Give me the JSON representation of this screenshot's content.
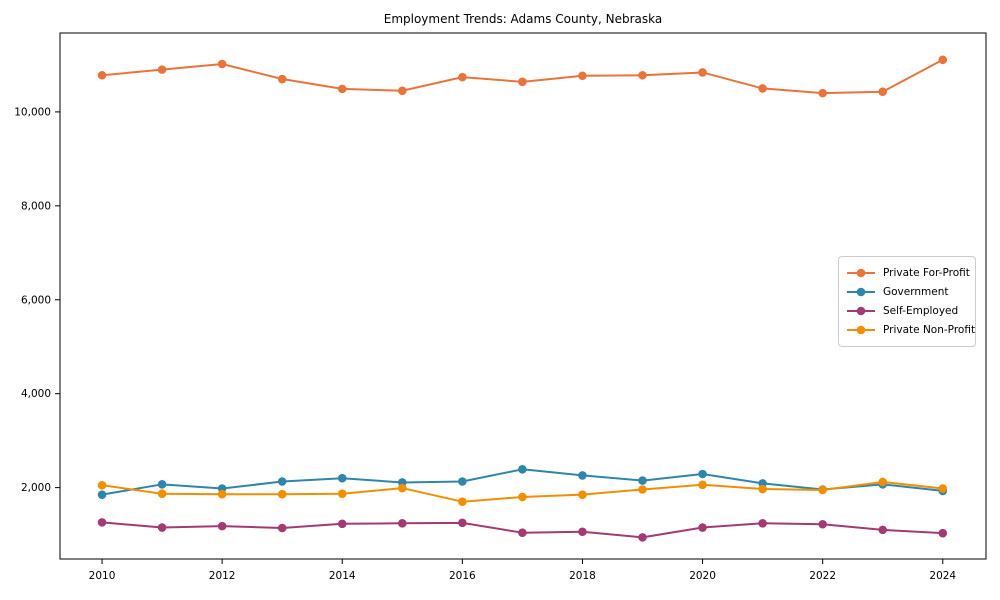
{
  "chart_data": {
    "type": "line",
    "title": "Employment Trends: Adams County, Nebraska",
    "xlabel": "",
    "ylabel": "",
    "x": [
      2010,
      2011,
      2012,
      2013,
      2014,
      2015,
      2016,
      2017,
      2018,
      2019,
      2020,
      2021,
      2022,
      2023,
      2024
    ],
    "series": [
      {
        "name": "Private For-Profit",
        "color": "#E8743B",
        "values": [
          10780,
          10900,
          11020,
          10700,
          10490,
          10450,
          10740,
          10640,
          10770,
          10780,
          10840,
          10500,
          10400,
          10430,
          11110
        ]
      },
      {
        "name": "Government",
        "color": "#2E86AB",
        "values": [
          1850,
          2070,
          1980,
          2130,
          2200,
          2110,
          2130,
          2390,
          2260,
          2150,
          2290,
          2090,
          1960,
          2070,
          1930
        ]
      },
      {
        "name": "Self-Employed",
        "color": "#A23B72",
        "values": [
          1260,
          1150,
          1180,
          1140,
          1230,
          1240,
          1250,
          1040,
          1060,
          940,
          1150,
          1240,
          1220,
          1100,
          1030
        ]
      },
      {
        "name": "Private Non-Profit",
        "color": "#F18F01",
        "values": [
          2050,
          1870,
          1860,
          1860,
          1870,
          1990,
          1700,
          1800,
          1850,
          1960,
          2060,
          1970,
          1950,
          2120,
          1980
        ]
      }
    ],
    "xticks": [
      2010,
      2012,
      2014,
      2016,
      2018,
      2020,
      2022,
      2024
    ],
    "xtick_labels": [
      "2010",
      "2012",
      "2014",
      "2016",
      "2018",
      "2020",
      "2022",
      "2024"
    ],
    "yticks": [
      2000,
      4000,
      6000,
      8000,
      10000
    ],
    "ytick_labels": [
      "2,000",
      "4,000",
      "6,000",
      "8,000",
      "10,000"
    ],
    "xlim": [
      2009.3,
      2024.72
    ],
    "ylim": [
      480,
      11680
    ],
    "grid": false,
    "marker": "circle",
    "line_width": 2,
    "marker_radius": 4.3,
    "axis_color": "#000000",
    "text_color": "#000000",
    "legend": {
      "position": "center-right",
      "border_color": "#cccccc",
      "background": "#ffffff"
    }
  }
}
